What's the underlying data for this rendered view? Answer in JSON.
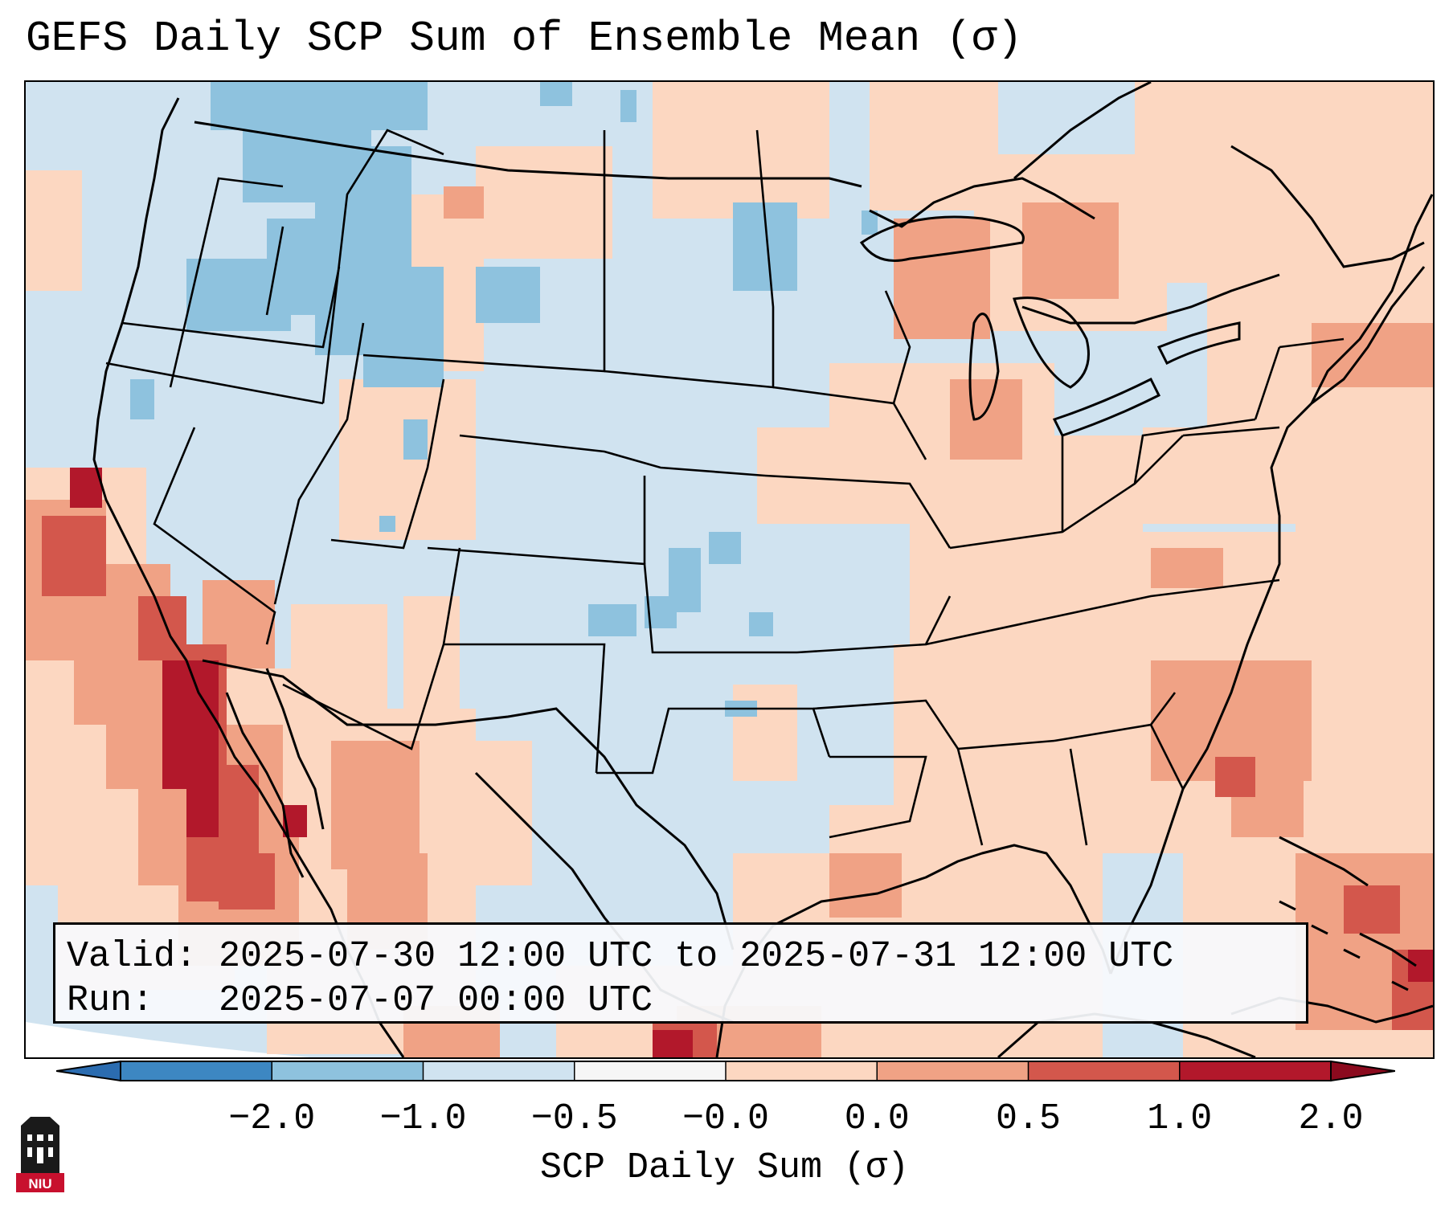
{
  "title": "GEFS Daily SCP Sum of Ensemble Mean (σ)",
  "info": {
    "valid_line": "Valid: 2025-07-30 12:00 UTC to 2025-07-31 12:00 UTC",
    "run_line": "Run:   2025-07-07 00:00 UTC"
  },
  "colorbar": {
    "label": "SCP Daily Sum (σ)",
    "ticks": [
      "−2.0",
      "−1.0",
      "−0.5",
      "−0.0",
      "0.0",
      "0.5",
      "1.0",
      "2.0"
    ],
    "colors": [
      "#3d87c2",
      "#8ec2de",
      "#d0e3f0",
      "#f6f6f6",
      "#fcd7c1",
      "#f0a285",
      "#d3574c",
      "#b2182b"
    ],
    "extend": "both"
  },
  "map": {
    "projection": "Lambert Conformal (CONUS)",
    "ocean_background": "#d0e3f0",
    "outside_domain": "#ffffff"
  },
  "logo": {
    "text": "NIU"
  }
}
